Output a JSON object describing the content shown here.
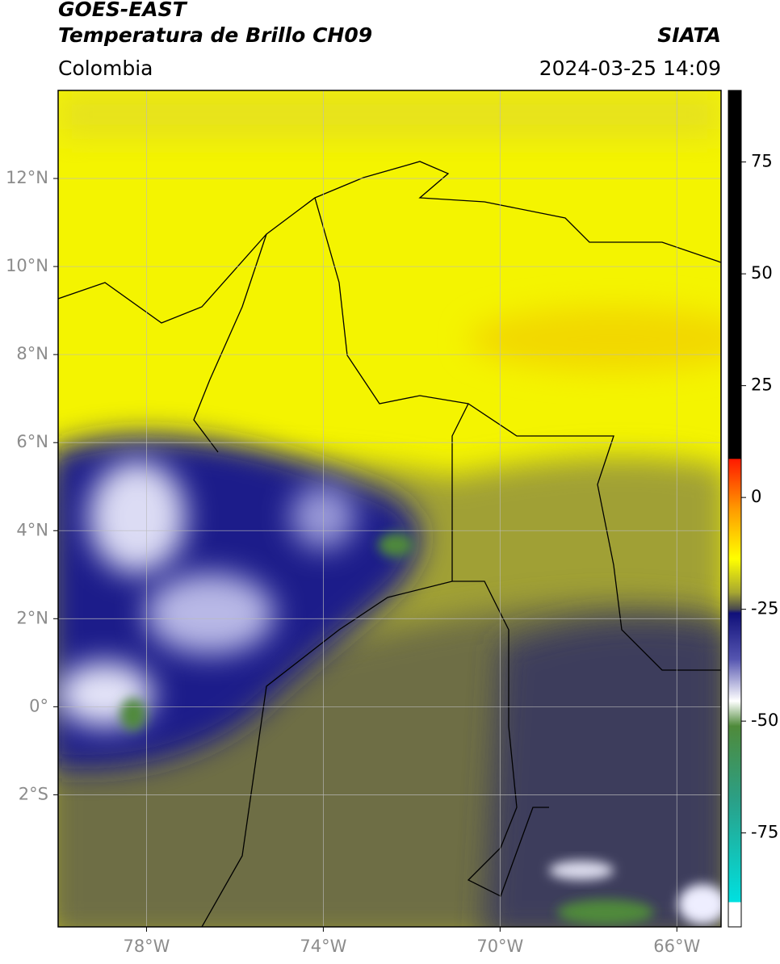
{
  "header": {
    "satellite": "GOES-EAST",
    "product": "Temperatura de Brillo CH09",
    "region": "Colombia",
    "source": "SIATA",
    "datetime": "2024-03-25 14:09"
  },
  "map": {
    "xlim": [
      -80,
      -65
    ],
    "ylim": [
      -5,
      14
    ],
    "xticks": [
      {
        "value": -78,
        "label": "78°W"
      },
      {
        "value": -74,
        "label": "74°W"
      },
      {
        "value": -70,
        "label": "70°W"
      },
      {
        "value": -66,
        "label": "66°W"
      }
    ],
    "yticks": [
      {
        "value": 12,
        "label": "12°N"
      },
      {
        "value": 10,
        "label": "10°N"
      },
      {
        "value": 8,
        "label": "8°N"
      },
      {
        "value": 6,
        "label": "6°N"
      },
      {
        "value": 4,
        "label": "4°N"
      },
      {
        "value": 2,
        "label": "2°N"
      },
      {
        "value": 0,
        "label": "0°"
      },
      {
        "value": -2,
        "label": "2°S"
      }
    ],
    "grid": true
  },
  "colorbar": {
    "lim": [
      -96,
      91
    ],
    "ticks": [
      75,
      50,
      25,
      0,
      -25,
      -50,
      -75
    ]
  }
}
